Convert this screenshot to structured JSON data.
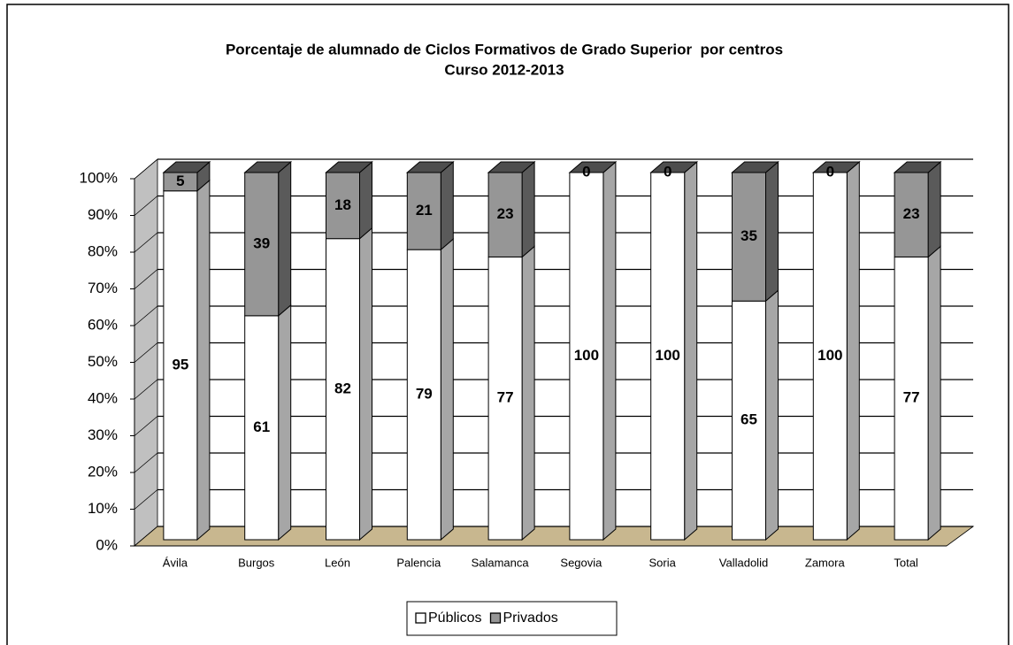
{
  "chart_data": {
    "type": "bar3d_stacked",
    "title": "Porcentaje de alumnado de Ciclos Formativos de Grado Superior  por centros",
    "subtitle": "Curso 2012-2013",
    "categories": [
      "Ávila",
      "Burgos",
      "León",
      "Palencia",
      "Salamanca",
      "Segovia",
      "Soria",
      "Valladolid",
      "Zamora",
      "Total"
    ],
    "series": [
      {
        "name": "Públicos",
        "color": "#ffffff",
        "values": [
          95,
          61,
          82,
          79,
          77,
          100,
          100,
          65,
          100,
          77
        ]
      },
      {
        "name": "Privados",
        "color": "#969696",
        "values": [
          5,
          39,
          18,
          21,
          23,
          0,
          0,
          35,
          0,
          23
        ]
      }
    ],
    "ylim": [
      0,
      100
    ],
    "yticks": [
      {
        "value": 0,
        "label": "0%"
      },
      {
        "value": 10,
        "label": "10%"
      },
      {
        "value": 20,
        "label": "20%"
      },
      {
        "value": 30,
        "label": "30%"
      },
      {
        "value": 40,
        "label": "40%"
      },
      {
        "value": 50,
        "label": "50%"
      },
      {
        "value": 60,
        "label": "60%"
      },
      {
        "value": 70,
        "label": "70%"
      },
      {
        "value": 80,
        "label": "80%"
      },
      {
        "value": 90,
        "label": "90%"
      },
      {
        "value": 100,
        "label": "100%"
      }
    ],
    "grid": true,
    "legend": "bottom"
  }
}
